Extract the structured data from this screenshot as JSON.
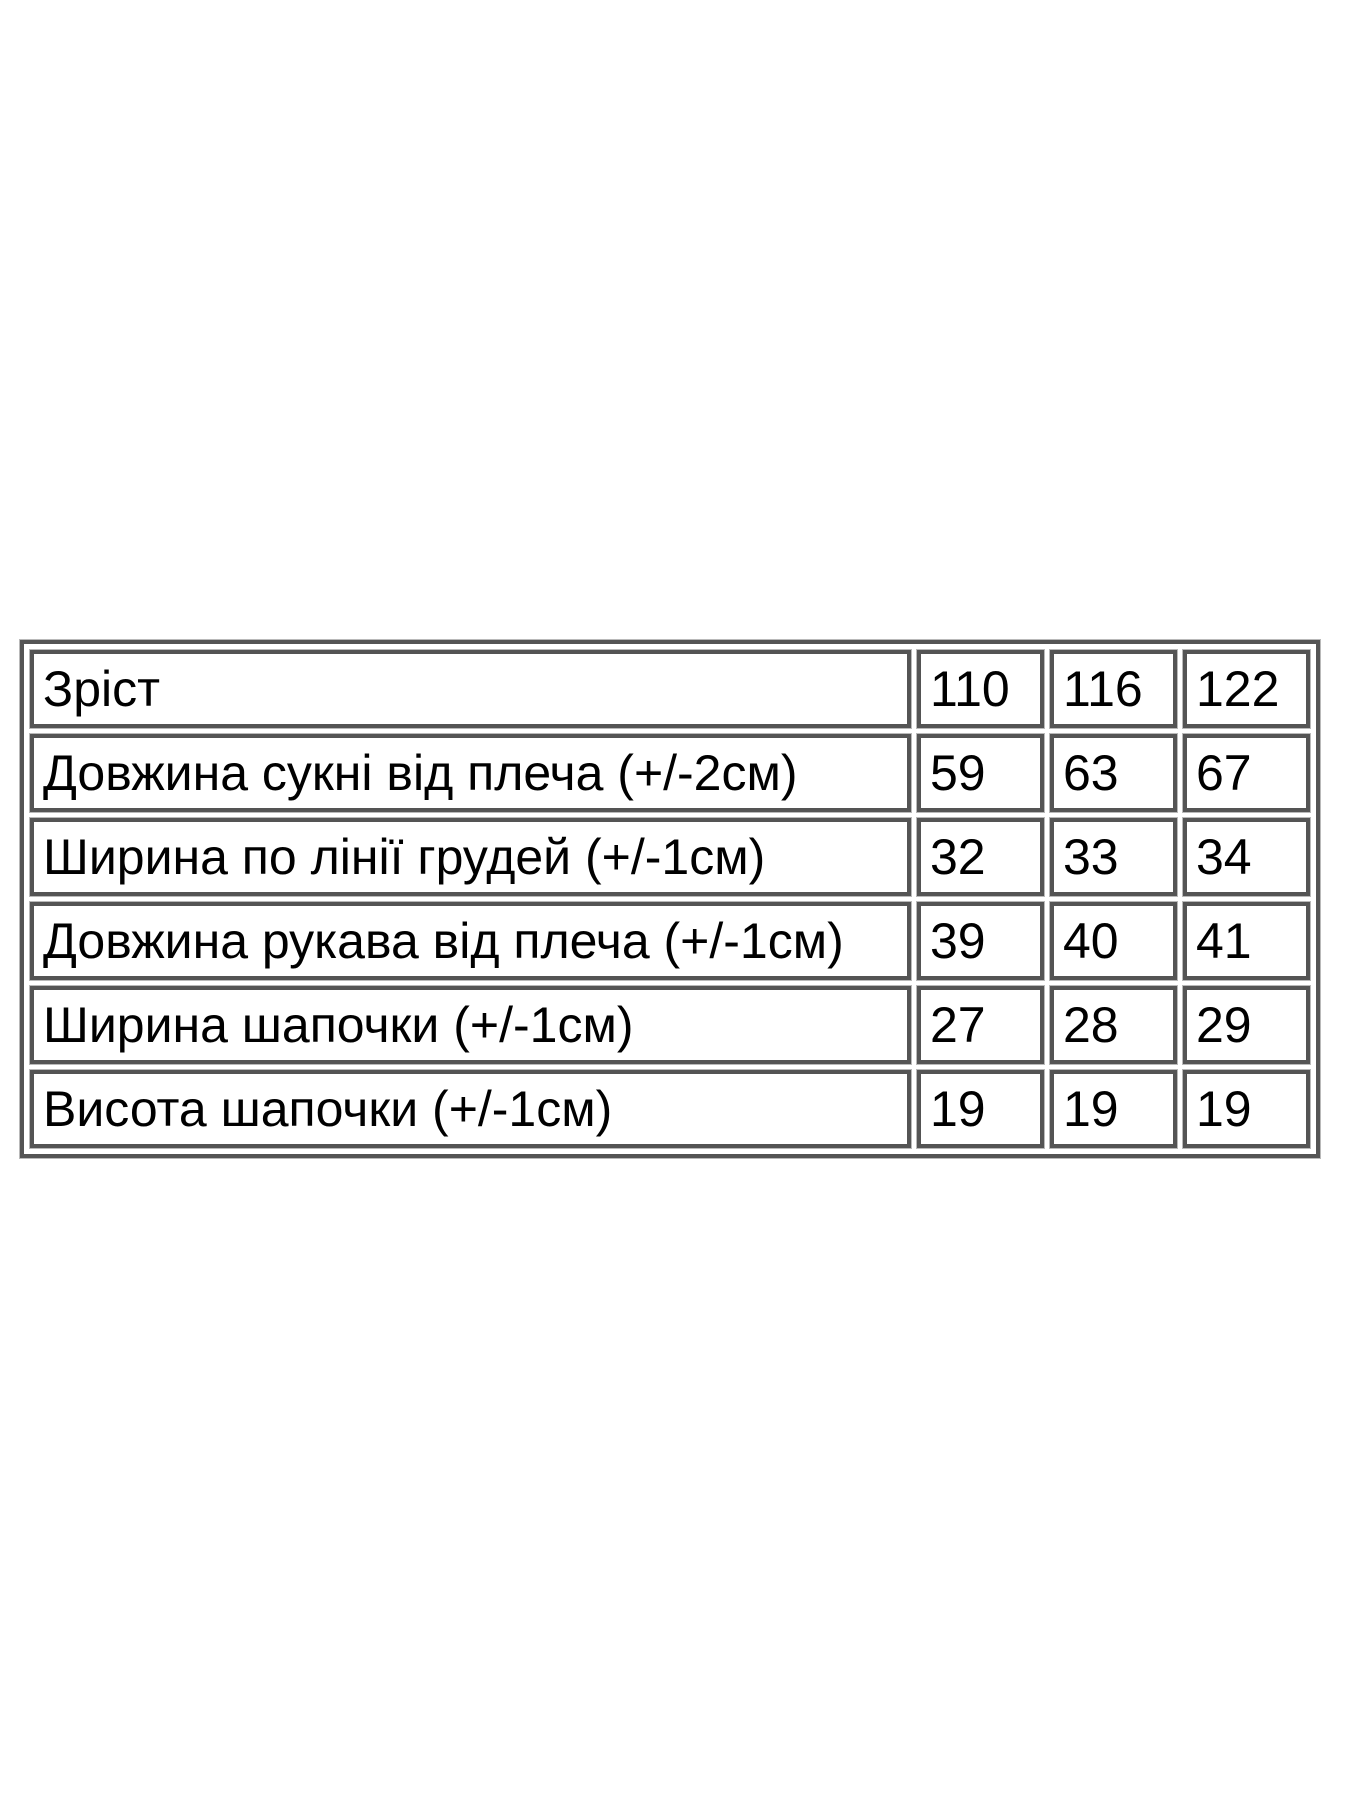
{
  "page": {
    "background": "#ffffff"
  },
  "chart_data": {
    "type": "table",
    "title": "",
    "header_row_index": 0,
    "rows": [
      {
        "label": "Зріст",
        "values": [
          "110",
          "116",
          "122"
        ]
      },
      {
        "label": "Довжина сукні від плеча (+/-2см)",
        "values": [
          "59",
          "63",
          "67"
        ]
      },
      {
        "label": "Ширина по лінії грудей (+/-1см)",
        "values": [
          "32",
          "33",
          "34"
        ]
      },
      {
        "label": "Довжина рукава від плеча (+/-1см)",
        "values": [
          "39",
          "40",
          "41"
        ]
      },
      {
        "label": "Ширина шапочки (+/-1см)",
        "values": [
          "27",
          "28",
          "29"
        ]
      },
      {
        "label": "Висота шапочки (+/-1см)",
        "values": [
          "19",
          "19",
          "19"
        ]
      }
    ],
    "layout": {
      "columns": 4,
      "label_column": "left",
      "value_alignment": "left",
      "grid": "separated-cell-borders"
    },
    "styles": {
      "border_color": "#545454",
      "border_halo_color": "#b9b9b9",
      "text_color": "#000000",
      "background": "#ffffff"
    }
  }
}
